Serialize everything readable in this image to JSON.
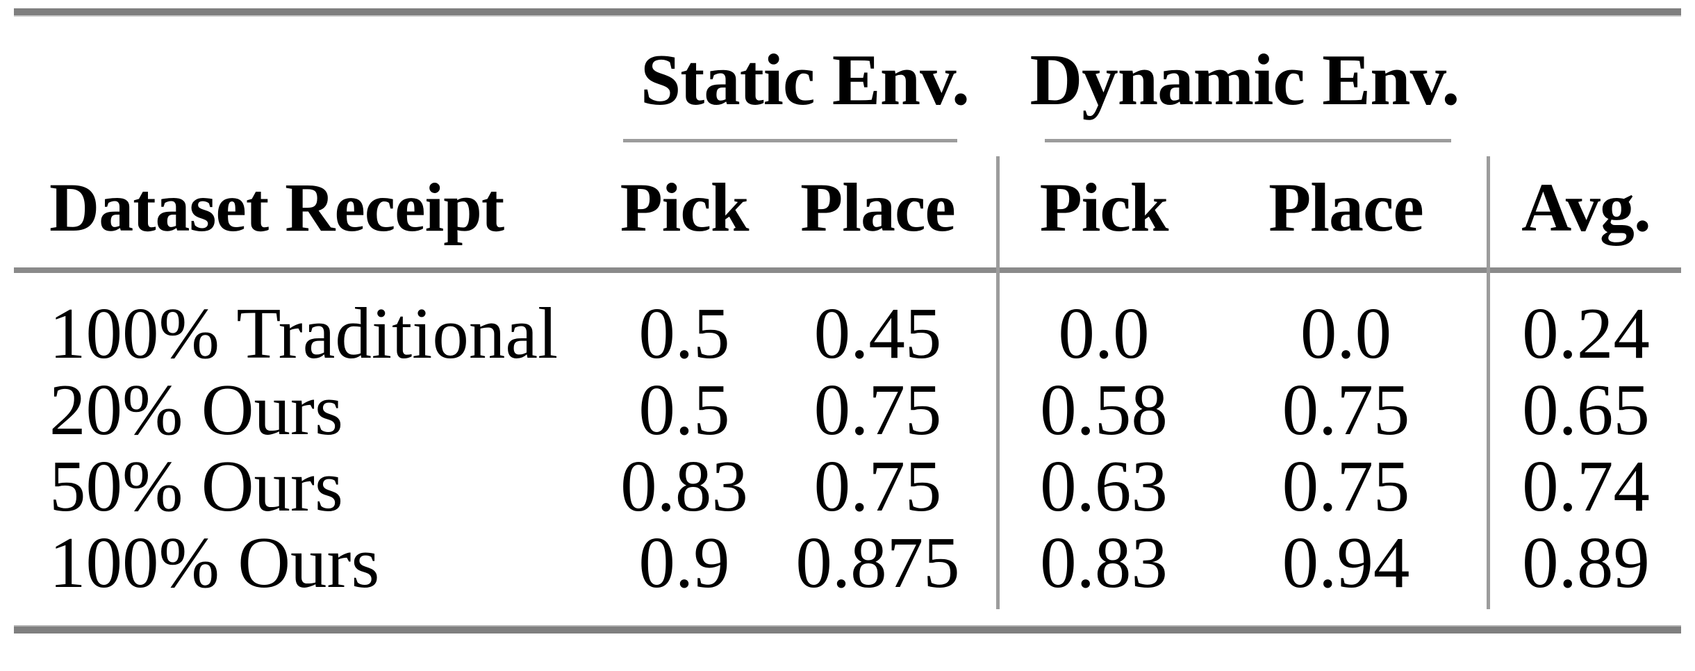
{
  "figure": {
    "kind": "academic-paper-results-table"
  },
  "table": {
    "groups": {
      "static": "Static Env.",
      "dynamic": "Dynamic Env."
    },
    "headers": {
      "dataset": "Dataset Receipt",
      "static_pick": "Pick",
      "static_place": "Place",
      "dynamic_pick": "Pick",
      "dynamic_place": "Place",
      "avg": "Avg."
    },
    "rows": [
      {
        "label": "100% Traditional",
        "cells": [
          "0.5",
          "0.45",
          "0.0",
          "0.0",
          "0.24"
        ]
      },
      {
        "label": "20% Ours",
        "cells": [
          "0.5",
          "0.75",
          "0.58",
          "0.75",
          "0.65"
        ]
      },
      {
        "label": "50% Ours",
        "cells": [
          "0.83",
          "0.75",
          "0.63",
          "0.75",
          "0.74"
        ]
      },
      {
        "label": "100% Ours",
        "cells": [
          "0.9",
          "0.875",
          "0.83",
          "0.94",
          "0.89"
        ]
      }
    ]
  },
  "colors": {
    "text": "#000000",
    "thick_rule": "#7f7f7f",
    "thin_rule": "#9c9c9c",
    "background": "#ffffff"
  }
}
